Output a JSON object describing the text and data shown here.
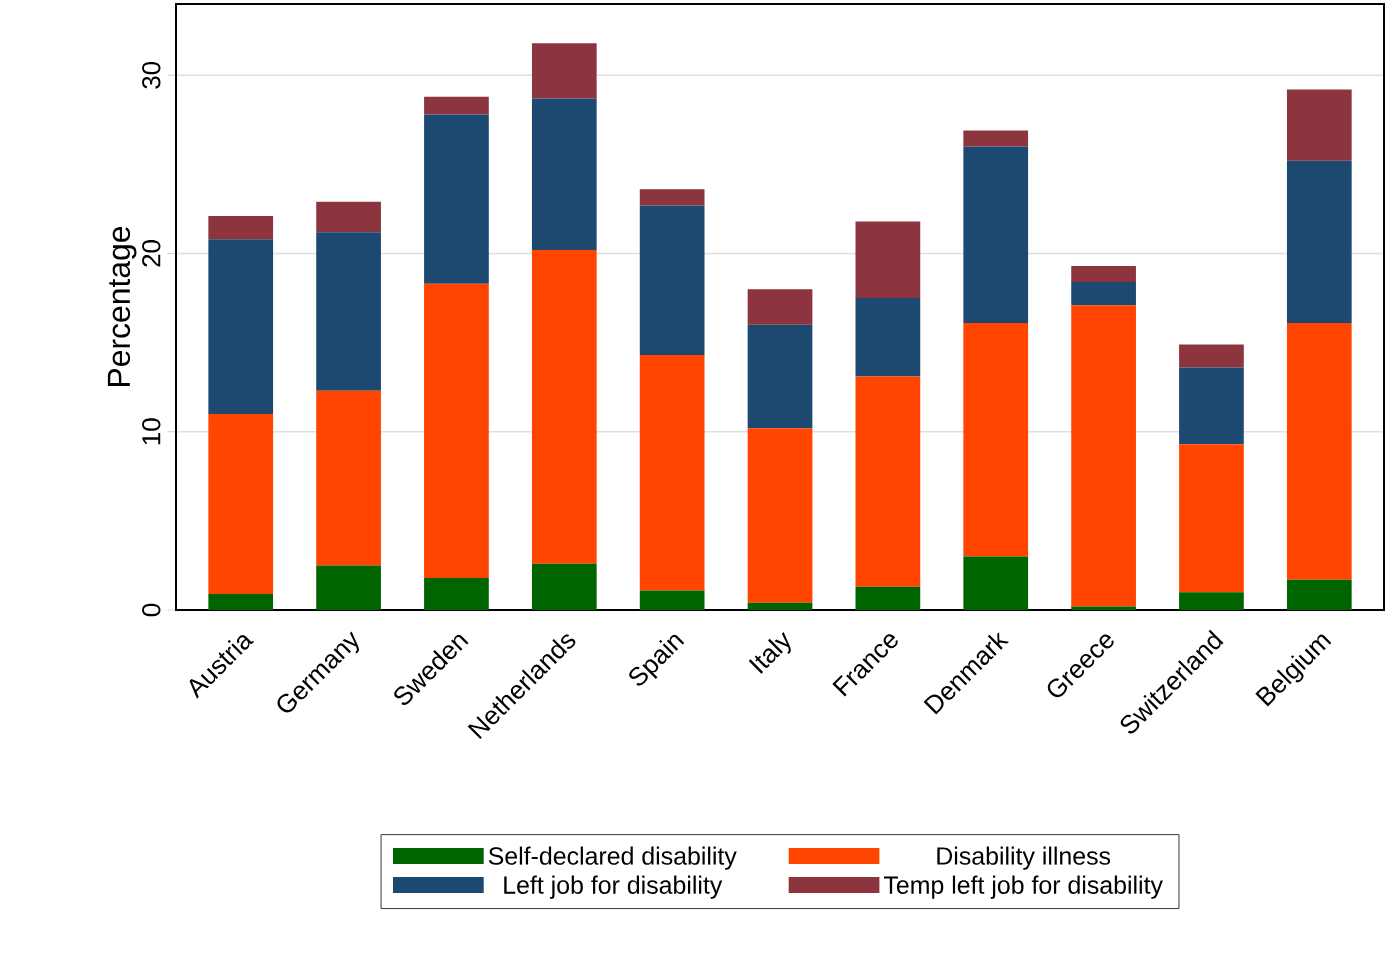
{
  "chart_data": {
    "type": "bar",
    "stacked": true,
    "ylabel": "Percentage",
    "categories": [
      "Austria",
      "Germany",
      "Sweden",
      "Netherlands",
      "Spain",
      "Italy",
      "France",
      "Denmark",
      "Greece",
      "Switzerland",
      "Belgium"
    ],
    "series": [
      {
        "name": "Self-declared disability",
        "color": "#006400",
        "values": [
          0.9,
          2.5,
          1.8,
          2.6,
          1.1,
          0.4,
          1.3,
          3.0,
          0.2,
          1.0,
          1.7
        ]
      },
      {
        "name": "Disability illness",
        "color": "#ff4500",
        "values": [
          10.1,
          9.8,
          16.5,
          17.6,
          13.2,
          9.8,
          11.8,
          13.1,
          16.9,
          8.3,
          14.4
        ]
      },
      {
        "name": "Left job for disability",
        "color": "#1d4870",
        "values": [
          9.8,
          8.9,
          9.5,
          8.5,
          8.4,
          5.8,
          4.4,
          9.9,
          1.3,
          4.3,
          9.1
        ]
      },
      {
        "name": "Temp left job for disability",
        "color": "#8c353f",
        "values": [
          1.3,
          1.7,
          1.0,
          3.1,
          0.9,
          2.0,
          4.3,
          0.9,
          0.9,
          1.3,
          4.0
        ]
      }
    ],
    "ylim": [
      0,
      34
    ],
    "yticks": [
      0,
      10,
      20,
      30
    ],
    "grid": "y",
    "legend": "bottom"
  }
}
